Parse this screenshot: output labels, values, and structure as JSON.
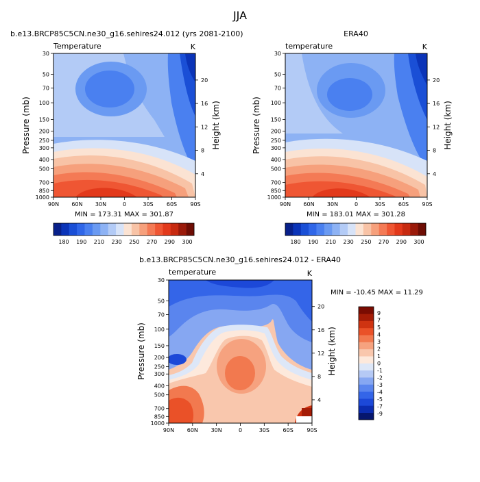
{
  "figure": {
    "title": "JJA"
  },
  "panels": [
    {
      "title_left": "b.e13.BRCP85C5CN.ne30_g16.sehires24.012 (yrs 2081-2100)",
      "title_center": "",
      "variable_label": "Temperature",
      "unit_label": "K",
      "stats_label": "MIN = 173.31   MAX = 301.87"
    },
    {
      "title_left": "",
      "title_center": "ERA40",
      "variable_label": "temperature",
      "unit_label": "K",
      "stats_label": "MIN = 183.01   MAX = 301.28"
    },
    {
      "title_left": "",
      "title_center": "b.e13.BRCP85C5CN.ne30_g16.sehires24.012 - ERA40",
      "variable_label": "temperature",
      "unit_label": "K",
      "stats_label": "MIN = -10.45   MAX =  11.29"
    }
  ],
  "chart_data": [
    {
      "type": "heatmap",
      "subtype": "filled-contour",
      "title": "b.e13.BRCP85C5CN.ne30_g16.sehires24.012 (yrs 2081-2100)",
      "variable": "Temperature",
      "units": "K",
      "ylabel": "Pressure (mb)",
      "ylabel_right": "Height (km)",
      "y_scale": "log",
      "y_reversed": true,
      "x_ticks": [
        "90N",
        "60N",
        "30N",
        "0",
        "30S",
        "60S",
        "90S"
      ],
      "x_values": [
        90,
        60,
        30,
        0,
        -30,
        -60,
        -90
      ],
      "y_ticks": [
        30,
        50,
        70,
        100,
        150,
        200,
        250,
        300,
        400,
        500,
        700,
        850,
        1000
      ],
      "y_right_ticks": [
        20,
        16,
        12,
        8,
        4
      ],
      "ylim": [
        1000,
        30
      ],
      "xlim": [
        90,
        -90
      ],
      "min": 173.31,
      "max": 301.87,
      "colorbar": {
        "orientation": "horizontal",
        "levels": [
          180,
          190,
          200,
          210,
          220,
          230,
          240,
          250,
          260,
          270,
          280,
          290,
          300
        ],
        "labels": [
          "180",
          "190",
          "210",
          "230",
          "250",
          "270",
          "290",
          "300"
        ]
      }
    },
    {
      "type": "heatmap",
      "subtype": "filled-contour",
      "title": "ERA40",
      "variable": "temperature",
      "units": "K",
      "ylabel": "Pressure (mb)",
      "ylabel_right": "Height (km)",
      "y_scale": "log",
      "y_reversed": true,
      "x_ticks": [
        "90N",
        "60N",
        "30N",
        "0",
        "30S",
        "60S",
        "90S"
      ],
      "x_values": [
        90,
        60,
        30,
        0,
        -30,
        -60,
        -90
      ],
      "y_ticks": [
        30,
        50,
        70,
        100,
        150,
        200,
        250,
        300,
        400,
        500,
        700,
        850,
        1000
      ],
      "y_right_ticks": [
        20,
        16,
        12,
        8,
        4
      ],
      "ylim": [
        1000,
        30
      ],
      "xlim": [
        90,
        -90
      ],
      "min": 183.01,
      "max": 301.28,
      "colorbar": {
        "orientation": "horizontal",
        "levels": [
          180,
          190,
          200,
          210,
          220,
          230,
          240,
          250,
          260,
          270,
          280,
          290,
          300
        ],
        "labels": [
          "180",
          "190",
          "210",
          "230",
          "250",
          "270",
          "290",
          "300"
        ]
      }
    },
    {
      "type": "heatmap",
      "subtype": "filled-contour",
      "title": "b.e13.BRCP85C5CN.ne30_g16.sehires24.012 - ERA40",
      "variable": "temperature",
      "units": "K",
      "ylabel": "Pressure (mb)",
      "ylabel_right": "Height (km)",
      "y_scale": "log",
      "y_reversed": true,
      "x_ticks": [
        "90N",
        "60N",
        "30N",
        "0",
        "30S",
        "60S",
        "90S"
      ],
      "x_values": [
        90,
        60,
        30,
        0,
        -30,
        -60,
        -90
      ],
      "y_ticks": [
        30,
        50,
        70,
        100,
        150,
        200,
        250,
        300,
        400,
        500,
        700,
        850,
        1000
      ],
      "y_right_ticks": [
        20,
        16,
        12,
        8,
        4
      ],
      "ylim": [
        1000,
        30
      ],
      "xlim": [
        90,
        -90
      ],
      "min": -10.45,
      "max": 11.29,
      "colorbar": {
        "orientation": "vertical",
        "levels": [
          -9,
          -7,
          -5,
          -4,
          -3,
          -2,
          -1,
          0,
          1,
          2,
          3,
          4,
          5,
          7,
          9
        ],
        "labels": [
          "9",
          "7",
          "5",
          "4",
          "3",
          "2",
          "1",
          "0",
          "-1",
          "-2",
          "-3",
          "-4",
          "-5",
          "-7",
          "-9"
        ]
      }
    }
  ],
  "colors": {
    "abs_scale": [
      "#08208a",
      "#0b34b8",
      "#1a4fd6",
      "#2f66e8",
      "#4a80f0",
      "#6a9af2",
      "#8db2f4",
      "#b3cbf6",
      "#d7e3f8",
      "#fbe3d3",
      "#f8c3a6",
      "#f6a07c",
      "#f47a55",
      "#ef5633",
      "#e2391b",
      "#c72a10",
      "#9a1a0a",
      "#6e0d04"
    ],
    "diff_scale": [
      "#06166e",
      "#0b2cb0",
      "#1c48d8",
      "#3465e8",
      "#5a85ee",
      "#86a7f2",
      "#b5c9f5",
      "#dde7f8",
      "#fde9dc",
      "#f9c7ad",
      "#f6a27f",
      "#f2794f",
      "#ea5128",
      "#cf3311",
      "#a51c06",
      "#7a0c02"
    ]
  }
}
